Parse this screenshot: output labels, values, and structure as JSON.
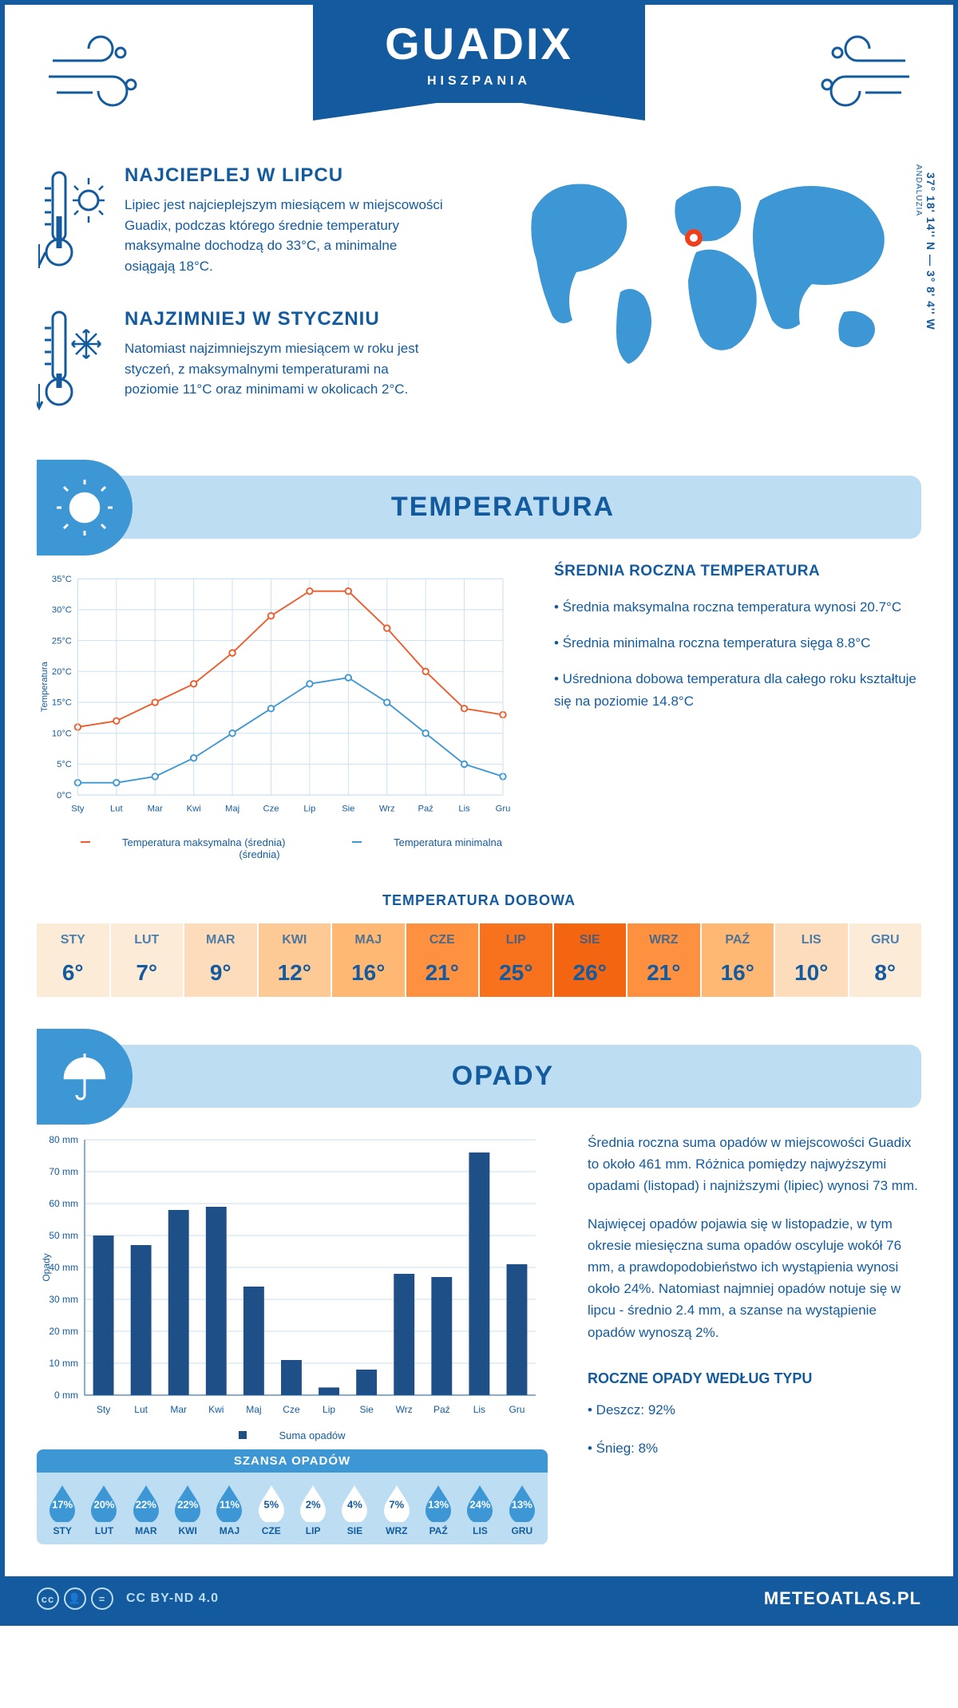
{
  "header": {
    "city": "GUADIX",
    "country": "HISZPANIA"
  },
  "coords": {
    "lat": "37° 18' 14'' N — 3° 8' 4'' W",
    "region": "ANDALUZIA"
  },
  "hottest": {
    "title": "NAJCIEPLEJ W LIPCU",
    "text": "Lipiec jest najcieplejszym miesiącem w miejscowości Guadix, podczas którego średnie temperatury maksymalne dochodzą do 33°C, a minimalne osiągają 18°C."
  },
  "coldest": {
    "title": "NAJZIMNIEJ W STYCZNIU",
    "text": "Natomiast najzimniejszym miesiącem w roku jest styczeń, z maksymalnymi temperaturami na poziomie 11°C oraz minimami w okolicach 2°C."
  },
  "temperature": {
    "heading": "TEMPERATURA",
    "info_title": "ŚREDNIA ROCZNA TEMPERATURA",
    "bullets": [
      "• Średnia maksymalna roczna temperatura wynosi 20.7°C",
      "• Średnia minimalna roczna temperatura sięga 8.8°C",
      "• Uśredniona dobowa temperatura dla całego roku kształtuje się na poziomie 14.8°C"
    ],
    "chart": {
      "type": "line",
      "months": [
        "Sty",
        "Lut",
        "Mar",
        "Kwi",
        "Maj",
        "Cze",
        "Lip",
        "Sie",
        "Wrz",
        "Paź",
        "Lis",
        "Gru"
      ],
      "y_ticks": [
        0,
        5,
        10,
        15,
        20,
        25,
        30,
        35
      ],
      "y_labels": [
        "0°C",
        "5°C",
        "10°C",
        "15°C",
        "20°C",
        "25°C",
        "30°C",
        "35°C"
      ],
      "ylim": [
        0,
        35
      ],
      "ylabel": "Temperatura",
      "series_max": {
        "label": "Temperatura maksymalna (średnia)",
        "color": "#ef5a28",
        "values": [
          11,
          12,
          15,
          18,
          23,
          29,
          33,
          33,
          27,
          20,
          14,
          13
        ]
      },
      "series_min": {
        "label": "Temperatura minimalna (średnia)",
        "color": "#3d97d4",
        "values": [
          2,
          2,
          3,
          6,
          10,
          14,
          18,
          19,
          15,
          10,
          5,
          3
        ]
      },
      "grid_color": "#c9dff0",
      "background": "#ffffff",
      "marker": "circle",
      "marker_size": 4,
      "line_width": 2
    },
    "daily": {
      "title": "TEMPERATURA DOBOWA",
      "months": [
        "STY",
        "LUT",
        "MAR",
        "KWI",
        "MAJ",
        "CZE",
        "LIP",
        "SIE",
        "WRZ",
        "PAŹ",
        "LIS",
        "GRU"
      ],
      "values": [
        "6°",
        "7°",
        "9°",
        "12°",
        "16°",
        "21°",
        "25°",
        "26°",
        "21°",
        "16°",
        "10°",
        "8°"
      ],
      "bg_colors": [
        "#fbebd7",
        "#fbebd7",
        "#fddcbb",
        "#fdc995",
        "#feb873",
        "#fd9140",
        "#f8721e",
        "#f36511",
        "#fd9140",
        "#feb873",
        "#fddcbb",
        "#fbebd7"
      ]
    }
  },
  "precip": {
    "heading": "OPADY",
    "para1": "Średnia roczna suma opadów w miejscowości Guadix to około 461 mm. Różnica pomiędzy najwyższymi opadami (listopad) i najniższymi (lipiec) wynosi 73 mm.",
    "para2": "Najwięcej opadów pojawia się w listopadzie, w tym okresie miesięczna suma opadów oscyluje wokół 76 mm, a prawdopodobieństwo ich wystąpienia wynosi około 24%. Natomiast najmniej opadów notuje się w lipcu - średnio 2.4 mm, a szanse na wystąpienie opadów wynoszą 2%.",
    "types_title": "ROCZNE OPADY WEDŁUG TYPU",
    "types": [
      "• Deszcz: 92%",
      "• Śnieg: 8%"
    ],
    "chart": {
      "type": "bar",
      "months": [
        "Sty",
        "Lut",
        "Mar",
        "Kwi",
        "Maj",
        "Cze",
        "Lip",
        "Sie",
        "Wrz",
        "Paź",
        "Lis",
        "Gru"
      ],
      "values": [
        50,
        47,
        58,
        59,
        34,
        11,
        2.4,
        8,
        38,
        37,
        76,
        41
      ],
      "y_ticks": [
        0,
        10,
        20,
        30,
        40,
        50,
        60,
        70,
        80
      ],
      "y_labels": [
        "0 mm",
        "10 mm",
        "20 mm",
        "30 mm",
        "40 mm",
        "50 mm",
        "60 mm",
        "70 mm",
        "80 mm"
      ],
      "ylim": [
        0,
        80
      ],
      "ylabel": "Opady",
      "bar_color": "#1e4f87",
      "legend": "Suma opadów",
      "grid_color": "#c9dff0",
      "bar_width": 0.55
    },
    "chance": {
      "title": "SZANSA OPADÓW",
      "months": [
        "STY",
        "LUT",
        "MAR",
        "KWI",
        "MAJ",
        "CZE",
        "LIP",
        "SIE",
        "WRZ",
        "PAŹ",
        "LIS",
        "GRU"
      ],
      "values": [
        "17%",
        "20%",
        "22%",
        "22%",
        "11%",
        "5%",
        "2%",
        "4%",
        "7%",
        "13%",
        "24%",
        "13%"
      ],
      "percent": [
        17,
        20,
        22,
        22,
        11,
        5,
        2,
        4,
        7,
        13,
        24,
        13
      ],
      "fill_color": "#3d97d4",
      "empty_color": "#ffffff"
    }
  },
  "footer": {
    "license": "CC BY-ND 4.0",
    "site": "METEOATLAS.PL"
  },
  "colors": {
    "primary": "#135b9e",
    "accent": "#3d97d4",
    "light": "#bcddf2",
    "orange": "#ef5a28"
  }
}
